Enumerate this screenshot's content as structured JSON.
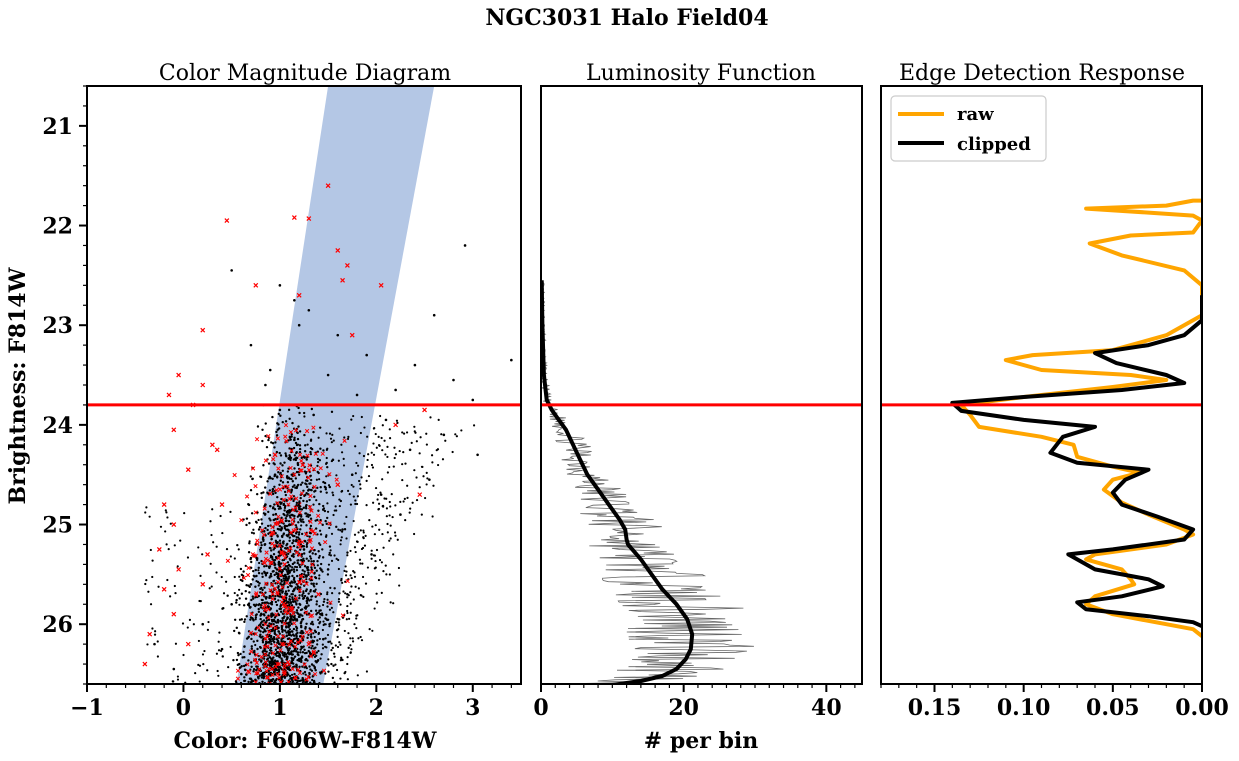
{
  "figure_title": "NGC3031 Halo Field04",
  "chart_data": [
    {
      "type": "scatter",
      "title": "Color Magnitude Diagram",
      "xlabel": "Color: F606W-F814W",
      "ylabel": "Brightness: F814W",
      "xlim": [
        -1,
        3.5
      ],
      "ylim": [
        26.6,
        20.6
      ],
      "y_inverted": true,
      "xticks": [
        -1,
        0,
        1,
        2,
        3
      ],
      "xtick_labels": [
        "−1",
        "0",
        "1",
        "2",
        "3"
      ],
      "yticks": [
        21,
        22,
        23,
        24,
        25,
        26
      ],
      "ytick_labels": [
        "21",
        "22",
        "23",
        "24",
        "25",
        "26"
      ],
      "selection_band": {
        "color": "#b0c4e4",
        "left_edge": [
          [
            0.55,
            26.6
          ],
          [
            1.5,
            20.6
          ]
        ],
        "right_edge": [
          [
            1.45,
            26.6
          ],
          [
            2.6,
            20.6
          ]
        ]
      },
      "series": [
        {
          "color": "#000000",
          "points": [
            [
              2.92,
              22.2
            ],
            [
              0.5,
              22.45
            ],
            [
              1.0,
              22.6
            ],
            [
              1.15,
              22.75
            ],
            [
              1.3,
              22.85
            ],
            [
              2.6,
              22.9
            ],
            [
              3.4,
              23.35
            ],
            [
              0.7,
              23.2
            ],
            [
              1.2,
              23.0
            ],
            [
              1.6,
              23.1
            ],
            [
              1.9,
              23.3
            ],
            [
              2.4,
              23.4
            ],
            [
              0.9,
              23.45
            ],
            [
              2.8,
              23.55
            ],
            [
              1.5,
              23.5
            ],
            [
              2.2,
              23.65
            ],
            [
              0.85,
              23.6
            ],
            [
              3.0,
              23.75
            ],
            [
              1.8,
              23.7
            ],
            [
              2.5,
              23.8
            ],
            [
              1.0,
              23.85
            ],
            [
              1.35,
              23.9
            ],
            [
              2.1,
              23.95
            ],
            [
              2.7,
              24.1
            ],
            [
              2.35,
              24.25
            ],
            [
              3.05,
              24.3
            ],
            [
              1.15,
              24.15
            ],
            [
              1.55,
              24.35
            ],
            [
              0.95,
              24.5
            ],
            [
              1.75,
              24.5
            ],
            [
              2.55,
              24.55
            ],
            [
              1.3,
              24.65
            ],
            [
              2.05,
              24.7
            ],
            [
              0.85,
              24.8
            ],
            [
              1.45,
              24.85
            ],
            [
              2.25,
              24.9
            ],
            [
              1.1,
              25.0
            ],
            [
              1.65,
              25.05
            ],
            [
              0.75,
              25.2
            ],
            [
              1.25,
              25.25
            ],
            [
              1.95,
              25.3
            ],
            [
              0.95,
              25.4
            ],
            [
              1.5,
              25.45
            ],
            [
              0.7,
              25.6
            ],
            [
              1.15,
              25.65
            ],
            [
              1.7,
              25.7
            ],
            [
              0.5,
              25.8
            ],
            [
              0.9,
              25.85
            ],
            [
              1.3,
              25.9
            ],
            [
              0.2,
              26.0
            ],
            [
              0.75,
              26.05
            ],
            [
              1.1,
              26.1
            ],
            [
              1.45,
              26.15
            ],
            [
              -0.3,
              26.2
            ],
            [
              0.4,
              26.25
            ],
            [
              0.85,
              26.3
            ],
            [
              1.2,
              26.35
            ],
            [
              -0.1,
              26.45
            ],
            [
              0.6,
              26.5
            ],
            [
              1.0,
              26.55
            ]
          ]
        },
        {
          "color": "#ff0000",
          "points": [
            [
              0.45,
              21.95
            ],
            [
              1.15,
              21.92
            ],
            [
              1.3,
              21.93
            ],
            [
              1.5,
              21.6
            ],
            [
              1.6,
              22.25
            ],
            [
              1.65,
              22.55
            ],
            [
              0.75,
              22.6
            ],
            [
              1.2,
              22.7
            ],
            [
              1.7,
              22.4
            ],
            [
              2.05,
              22.6
            ],
            [
              0.2,
              23.05
            ],
            [
              1.75,
              23.1
            ],
            [
              -0.05,
              23.5
            ],
            [
              0.2,
              23.6
            ],
            [
              0.1,
              23.8
            ],
            [
              -0.15,
              23.7
            ],
            [
              0.3,
              24.2
            ],
            [
              -0.1,
              24.05
            ],
            [
              0.35,
              24.25
            ],
            [
              0.05,
              24.45
            ],
            [
              -0.2,
              24.8
            ],
            [
              0.4,
              24.8
            ],
            [
              -0.1,
              25.0
            ],
            [
              -0.25,
              25.25
            ],
            [
              0.25,
              25.3
            ],
            [
              -0.05,
              25.45
            ],
            [
              -0.2,
              25.65
            ],
            [
              0.2,
              25.6
            ],
            [
              -0.1,
              25.9
            ],
            [
              -0.35,
              26.1
            ],
            [
              0.05,
              26.2
            ],
            [
              -0.4,
              26.4
            ],
            [
              0.95,
              24.3
            ],
            [
              1.2,
              24.8
            ],
            [
              1.6,
              24.6
            ],
            [
              1.05,
              25.4
            ],
            [
              1.4,
              25.7
            ],
            [
              0.85,
              26.0
            ],
            [
              1.3,
              26.2
            ],
            [
              2.2,
              24.0
            ],
            [
              2.5,
              23.85
            ],
            [
              2.45,
              24.7
            ]
          ]
        }
      ],
      "hline": {
        "y": 23.8,
        "color": "#ff0000"
      }
    },
    {
      "type": "line",
      "title": "Luminosity Function",
      "xlabel": "# per bin",
      "ylabel": "",
      "xlim": [
        0,
        45
      ],
      "ylim": [
        26.6,
        20.6
      ],
      "xticks": [
        0,
        20,
        40
      ],
      "xtick_labels": [
        "0",
        "20",
        "40"
      ],
      "series": [
        {
          "style": "smooth",
          "color": "#000000",
          "points": [
            [
              0.1,
              22.55
            ],
            [
              0.2,
              23.0
            ],
            [
              0.4,
              23.5
            ],
            [
              0.8,
              23.75
            ],
            [
              1.5,
              23.85
            ],
            [
              2.5,
              23.95
            ],
            [
              3.5,
              24.05
            ],
            [
              4.5,
              24.2
            ],
            [
              5.5,
              24.35
            ],
            [
              6.5,
              24.5
            ],
            [
              8.0,
              24.65
            ],
            [
              9.5,
              24.8
            ],
            [
              11.0,
              24.95
            ],
            [
              11.8,
              25.05
            ],
            [
              12.0,
              25.15
            ],
            [
              12.2,
              25.2
            ],
            [
              12.8,
              25.25
            ],
            [
              14.0,
              25.35
            ],
            [
              15.5,
              25.5
            ],
            [
              17.0,
              25.65
            ],
            [
              19.0,
              25.8
            ],
            [
              20.5,
              25.95
            ],
            [
              21.2,
              26.1
            ],
            [
              21.0,
              26.25
            ],
            [
              20.3,
              26.35
            ],
            [
              19.0,
              26.45
            ],
            [
              17.0,
              26.52
            ],
            [
              14.0,
              26.57
            ],
            [
              11.0,
              26.6
            ],
            [
              9.0,
              26.62
            ]
          ]
        },
        {
          "style": "noisy",
          "color": "#666666",
          "amplitude": "grows with count, up to about 10"
        }
      ],
      "hline": {
        "y": 23.8,
        "color": "#ff0000"
      }
    },
    {
      "type": "line",
      "title": "Edge Detection Response",
      "xlabel": "",
      "ylabel": "",
      "xlim": [
        0.18,
        0.0
      ],
      "x_inverted": true,
      "ylim": [
        26.6,
        20.6
      ],
      "xticks": [
        0.15,
        0.1,
        0.05,
        0.0
      ],
      "xtick_labels": [
        "0.15",
        "0.10",
        "0.05",
        "0.00"
      ],
      "legend": {
        "position": "top-left",
        "entries": [
          "raw",
          "clipped"
        ]
      },
      "series": [
        {
          "name": "raw",
          "color": "#ffa500",
          "points": [
            [
              0.0,
              21.75
            ],
            [
              0.005,
              21.75
            ],
            [
              0.02,
              21.8
            ],
            [
              0.065,
              21.83
            ],
            [
              0.03,
              21.87
            ],
            [
              0.005,
              21.9
            ],
            [
              0.0,
              21.95
            ],
            [
              0.005,
              22.07
            ],
            [
              0.04,
              22.1
            ],
            [
              0.063,
              22.18
            ],
            [
              0.045,
              22.3
            ],
            [
              0.01,
              22.45
            ],
            [
              0.0,
              22.6
            ],
            [
              0.0,
              22.9
            ],
            [
              0.02,
              23.1
            ],
            [
              0.05,
              23.25
            ],
            [
              0.095,
              23.3
            ],
            [
              0.11,
              23.35
            ],
            [
              0.09,
              23.45
            ],
            [
              0.04,
              23.5
            ],
            [
              0.02,
              23.55
            ],
            [
              0.05,
              23.62
            ],
            [
              0.1,
              23.72
            ],
            [
              0.135,
              23.8
            ],
            [
              0.13,
              23.9
            ],
            [
              0.125,
              24.02
            ],
            [
              0.09,
              24.12
            ],
            [
              0.072,
              24.2
            ],
            [
              0.07,
              24.32
            ],
            [
              0.05,
              24.42
            ],
            [
              0.035,
              24.48
            ],
            [
              0.05,
              24.55
            ],
            [
              0.055,
              24.65
            ],
            [
              0.045,
              24.78
            ],
            [
              0.03,
              24.9
            ],
            [
              0.01,
              25.05
            ],
            [
              0.005,
              25.1
            ],
            [
              0.02,
              25.2
            ],
            [
              0.06,
              25.3
            ],
            [
              0.065,
              25.35
            ],
            [
              0.045,
              25.45
            ],
            [
              0.04,
              25.55
            ],
            [
              0.038,
              25.6
            ],
            [
              0.06,
              25.72
            ],
            [
              0.065,
              25.8
            ],
            [
              0.05,
              25.9
            ],
            [
              0.02,
              26.0
            ],
            [
              0.005,
              26.05
            ],
            [
              0.0,
              26.12
            ]
          ]
        },
        {
          "name": "clipped",
          "color": "#000000",
          "points": [
            [
              0.0,
              22.7
            ],
            [
              0.0,
              22.95
            ],
            [
              0.01,
              23.1
            ],
            [
              0.03,
              23.2
            ],
            [
              0.06,
              23.28
            ],
            [
              0.048,
              23.38
            ],
            [
              0.02,
              23.5
            ],
            [
              0.01,
              23.58
            ],
            [
              0.045,
              23.65
            ],
            [
              0.1,
              23.72
            ],
            [
              0.14,
              23.78
            ],
            [
              0.135,
              23.86
            ],
            [
              0.1,
              23.95
            ],
            [
              0.06,
              24.02
            ],
            [
              0.078,
              24.12
            ],
            [
              0.085,
              24.28
            ],
            [
              0.07,
              24.38
            ],
            [
              0.03,
              24.45
            ],
            [
              0.043,
              24.55
            ],
            [
              0.05,
              24.68
            ],
            [
              0.045,
              24.8
            ],
            [
              0.025,
              24.92
            ],
            [
              0.005,
              25.05
            ],
            [
              0.01,
              25.15
            ],
            [
              0.05,
              25.25
            ],
            [
              0.075,
              25.3
            ],
            [
              0.06,
              25.45
            ],
            [
              0.03,
              25.55
            ],
            [
              0.022,
              25.62
            ],
            [
              0.045,
              25.72
            ],
            [
              0.07,
              25.78
            ],
            [
              0.065,
              25.85
            ],
            [
              0.03,
              25.92
            ],
            [
              0.005,
              25.98
            ],
            [
              0.0,
              26.02
            ]
          ]
        }
      ],
      "hline": {
        "y": 23.8,
        "color": "#ff0000"
      }
    }
  ]
}
